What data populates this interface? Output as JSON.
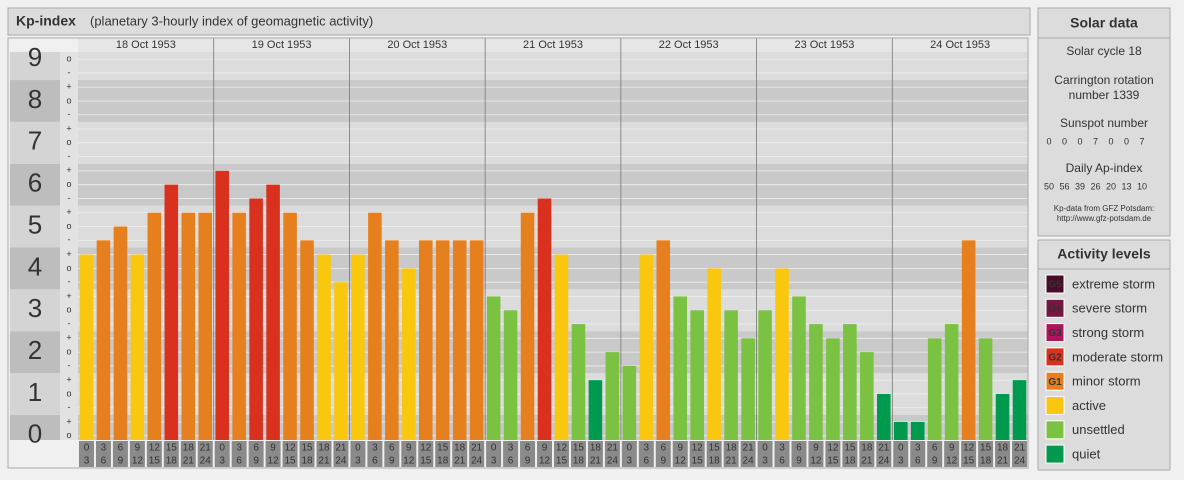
{
  "chart_data": {
    "type": "bar",
    "title": "Kp-index",
    "subtitle": "(planetary 3-hourly index of geomagnetic activity)",
    "days": [
      "18 Oct 1953",
      "19 Oct 1953",
      "20 Oct 1953",
      "21 Oct 1953",
      "22 Oct 1953",
      "23 Oct 1953",
      "24 Oct 1953"
    ],
    "hours": [
      [
        "0",
        "3"
      ],
      [
        "3",
        "6"
      ],
      [
        "6",
        "9"
      ],
      [
        "9",
        "12"
      ],
      [
        "12",
        "15"
      ],
      [
        "15",
        "18"
      ],
      [
        "18",
        "21"
      ],
      [
        "21",
        "24"
      ]
    ],
    "values": [
      4.33,
      4.67,
      5,
      4.33,
      5.33,
      6,
      5.33,
      5.33,
      6.33,
      5.33,
      5.67,
      6,
      5.33,
      4.67,
      4.33,
      3.67,
      4.33,
      5.33,
      4.67,
      4,
      4.67,
      4.67,
      4.67,
      4.67,
      3.33,
      3,
      5.33,
      5.67,
      4.33,
      2.67,
      1.33,
      2,
      1.67,
      4.33,
      4.67,
      3.33,
      3,
      4,
      3,
      2.33,
      3,
      4,
      3.33,
      2.67,
      2.33,
      2.67,
      2,
      1,
      0.33,
      0.33,
      2.33,
      2.67,
      4.67,
      2.33,
      1,
      1.33
    ],
    "colors": [
      "#f9c80e",
      "#e6801e",
      "#e6801e",
      "#f9c80e",
      "#e6801e",
      "#d9311e",
      "#e6801e",
      "#e6801e",
      "#d9311e",
      "#e6801e",
      "#d9311e",
      "#d9311e",
      "#e6801e",
      "#e6801e",
      "#f9c80e",
      "#f9c80e",
      "#f9c80e",
      "#e6801e",
      "#e6801e",
      "#f9c80e",
      "#e6801e",
      "#e6801e",
      "#e6801e",
      "#e6801e",
      "#7bc142",
      "#7bc142",
      "#e6801e",
      "#d9311e",
      "#f9c80e",
      "#7bc142",
      "#009a4e",
      "#7bc142",
      "#7bc142",
      "#f9c80e",
      "#e6801e",
      "#7bc142",
      "#7bc142",
      "#f9c80e",
      "#7bc142",
      "#7bc142",
      "#7bc142",
      "#f9c80e",
      "#7bc142",
      "#7bc142",
      "#7bc142",
      "#7bc142",
      "#7bc142",
      "#009a4e",
      "#009a4e",
      "#009a4e",
      "#7bc142",
      "#7bc142",
      "#e6801e",
      "#7bc142",
      "#009a4e",
      "#009a4e"
    ],
    "ylim": [
      -0.1,
      9.17
    ],
    "yticks": [
      0,
      1,
      2,
      3,
      4,
      5,
      6,
      7,
      8,
      9
    ],
    "yminor": [
      {
        "value": 0,
        "label": "o"
      },
      {
        "value": 0.33,
        "label": "+"
      },
      {
        "value": 0.67,
        "label": "-"
      },
      {
        "value": 1,
        "label": "o"
      },
      {
        "value": 1.33,
        "label": "+"
      },
      {
        "value": 1.67,
        "label": "-"
      },
      {
        "value": 2,
        "label": "o"
      },
      {
        "value": 2.33,
        "label": "+"
      },
      {
        "value": 2.67,
        "label": "-"
      },
      {
        "value": 3,
        "label": "o"
      },
      {
        "value": 3.33,
        "label": "+"
      },
      {
        "value": 3.67,
        "label": "-"
      },
      {
        "value": 4,
        "label": "o"
      },
      {
        "value": 4.33,
        "label": "+"
      },
      {
        "value": 4.67,
        "label": "-"
      },
      {
        "value": 5,
        "label": "o"
      },
      {
        "value": 5.33,
        "label": "+"
      },
      {
        "value": 5.67,
        "label": "-"
      },
      {
        "value": 6,
        "label": "o"
      },
      {
        "value": 6.33,
        "label": "+"
      },
      {
        "value": 6.67,
        "label": "-"
      },
      {
        "value": 7,
        "label": "o"
      },
      {
        "value": 7.33,
        "label": "+"
      },
      {
        "value": 7.67,
        "label": "-"
      },
      {
        "value": 8,
        "label": "o"
      },
      {
        "value": 8.33,
        "label": "+"
      },
      {
        "value": 8.67,
        "label": "-"
      },
      {
        "value": 9,
        "label": "o"
      }
    ]
  },
  "solar": {
    "title": "Solar data",
    "cycle": "Solar cycle 18",
    "carrington": [
      "Carrington rotation",
      "number 1339"
    ],
    "sunspot_title": "Sunspot number",
    "sunspot": [
      0,
      0,
      0,
      7,
      0,
      0,
      7
    ],
    "ap_title": "Daily Ap-index",
    "ap": [
      50,
      56,
      39,
      26,
      20,
      13,
      10
    ],
    "source": [
      "Kp-data from GFZ Potsdam:",
      "http://www.gfz-potsdam.de"
    ]
  },
  "legend": {
    "title": "Activity levels",
    "items": [
      {
        "badge": "G5",
        "name": "extreme storm",
        "color": "#4a0b2a"
      },
      {
        "badge": "G4",
        "name": "severe storm",
        "color": "#7a1442"
      },
      {
        "badge": "G3",
        "name": "strong storm",
        "color": "#b0135d"
      },
      {
        "badge": "G2",
        "name": "moderate storm",
        "color": "#d9311e"
      },
      {
        "badge": "G1",
        "name": "minor storm",
        "color": "#e6801e"
      },
      {
        "name": "active",
        "color": "#f9c80e"
      },
      {
        "name": "unsettled",
        "color": "#7bc142"
      },
      {
        "name": "quiet",
        "color": "#009a4e"
      }
    ]
  }
}
